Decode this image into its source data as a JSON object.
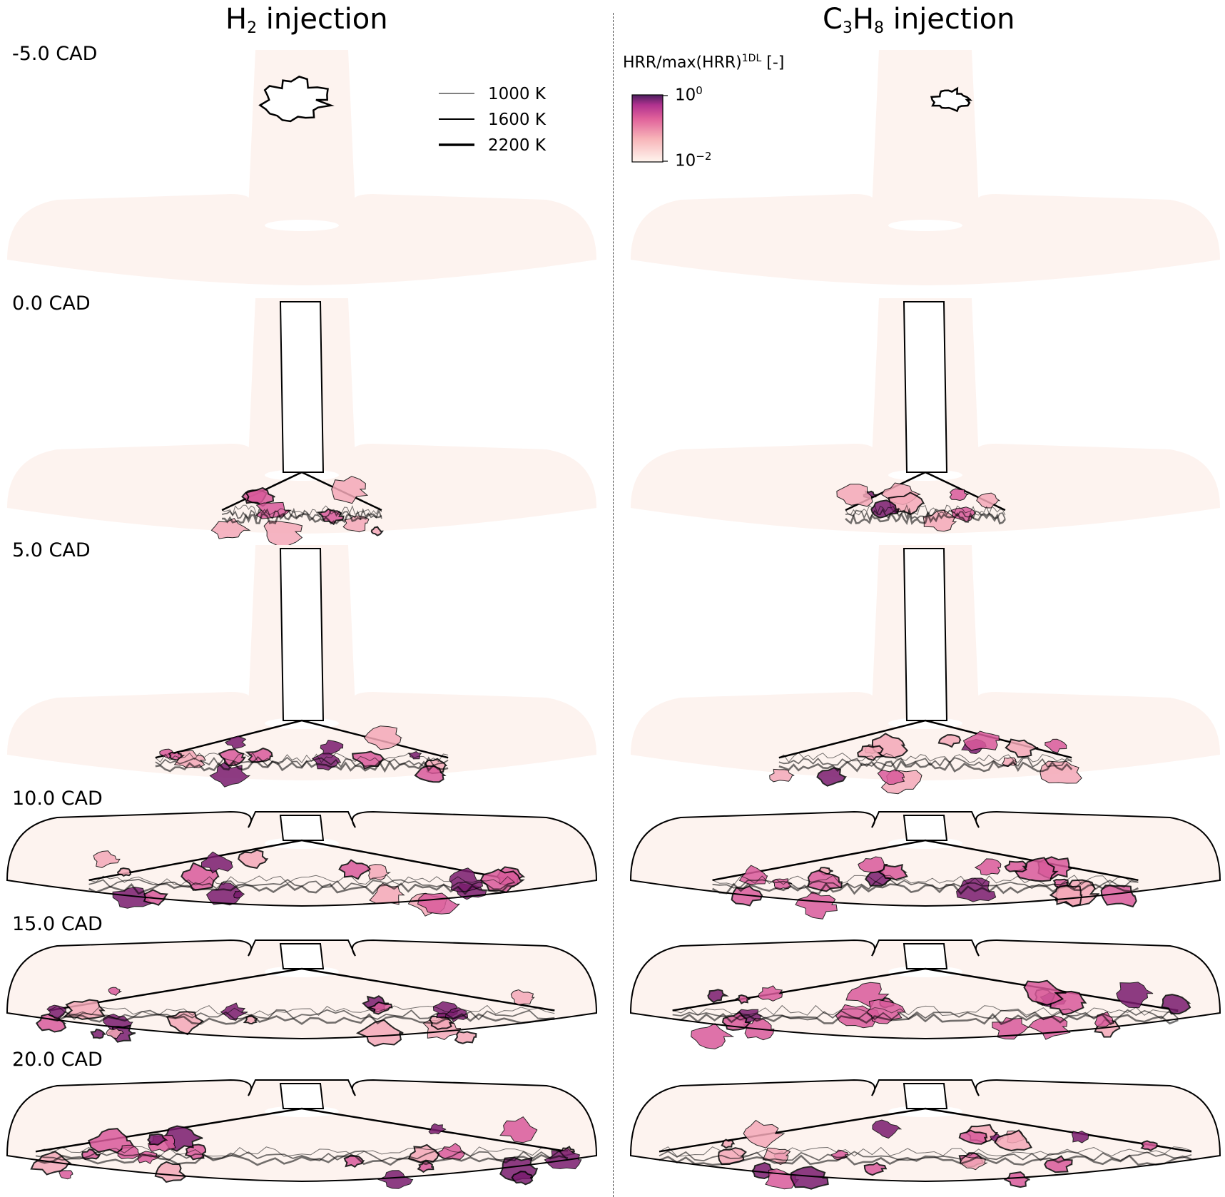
{
  "titles": {
    "left_base": "H",
    "left_sub": "2",
    "left_rest": " injection",
    "right_c": "C",
    "right_c_sub": "3",
    "right_h": "H",
    "right_h_sub": "8",
    "right_rest": " injection"
  },
  "cad_labels": [
    "-5.0 CAD",
    "0.0 CAD",
    "5.0 CAD",
    "10.0 CAD",
    "15.0 CAD",
    "20.0 CAD"
  ],
  "legend": {
    "items": [
      {
        "label": "1000 K"
      },
      {
        "label": "1600 K"
      },
      {
        "label": "2200 K"
      }
    ]
  },
  "colorbar": {
    "title": "HRR/max(HRR)",
    "title_sup": "1DL",
    "title_suffix": " [-]",
    "top_base": "10",
    "top_exp": "0",
    "bottom_base": "10",
    "bottom_exp": "−2",
    "colors": [
      "#fff5ee",
      "#f7b3b8",
      "#e0609a",
      "#b0328f",
      "#4c1e5e"
    ]
  },
  "colors": {
    "chamber": "#fdf3ef",
    "hrr_low": "#f4a8b8",
    "hrr_mid": "#d95a9b",
    "hrr_high": "#7a1c6e",
    "isoline": "#000000"
  }
}
